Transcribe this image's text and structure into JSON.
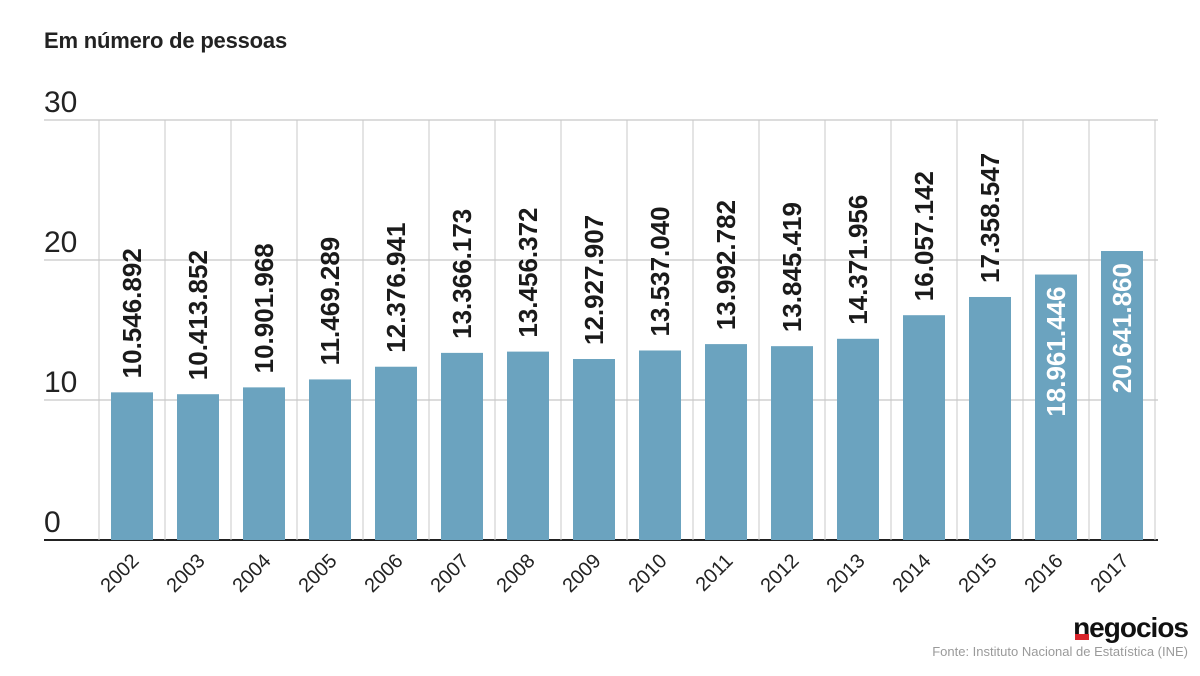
{
  "subtitle": "Em número de pessoas",
  "brand": "negocios",
  "source": "Fonte: Instituto Nacional de Estatística (INE)",
  "colors": {
    "bar": "#6ba3bf",
    "grid": "#c8c8c8",
    "axis": "#222222",
    "label_inside": "#ffffff",
    "label_outside": "#1a1a1a",
    "brand_accent": "#d8232a"
  },
  "chart_data": {
    "type": "bar",
    "categories": [
      "2002",
      "2003",
      "2004",
      "2005",
      "2006",
      "2007",
      "2008",
      "2009",
      "2010",
      "2011",
      "2012",
      "2013",
      "2014",
      "2015",
      "2016",
      "2017"
    ],
    "values": [
      10.546892,
      10.413852,
      10.901968,
      11.469289,
      12.376941,
      13.366173,
      13.456372,
      12.927907,
      13.53704,
      13.992782,
      13.845419,
      14.371956,
      16.057142,
      17.358547,
      18.961446,
      20.64186
    ],
    "data_labels": [
      "10.546.892",
      "10.413.852",
      "10.901.968",
      "11.469.289",
      "12.376.941",
      "13.366.173",
      "13.456.372",
      "12.927.907",
      "13.537.040",
      "13.992.782",
      "13.845.419",
      "14.371.956",
      "16.057.142",
      "17.358.547",
      "18.961.446",
      "20.641.860"
    ],
    "labels_inside": [
      false,
      false,
      false,
      false,
      false,
      false,
      false,
      false,
      false,
      false,
      false,
      false,
      false,
      false,
      true,
      true
    ],
    "yticks": [
      0,
      10,
      20,
      30
    ],
    "ytick_labels": [
      "0",
      "10",
      "20",
      "30"
    ],
    "ylim": [
      0,
      30
    ],
    "grid": true
  }
}
